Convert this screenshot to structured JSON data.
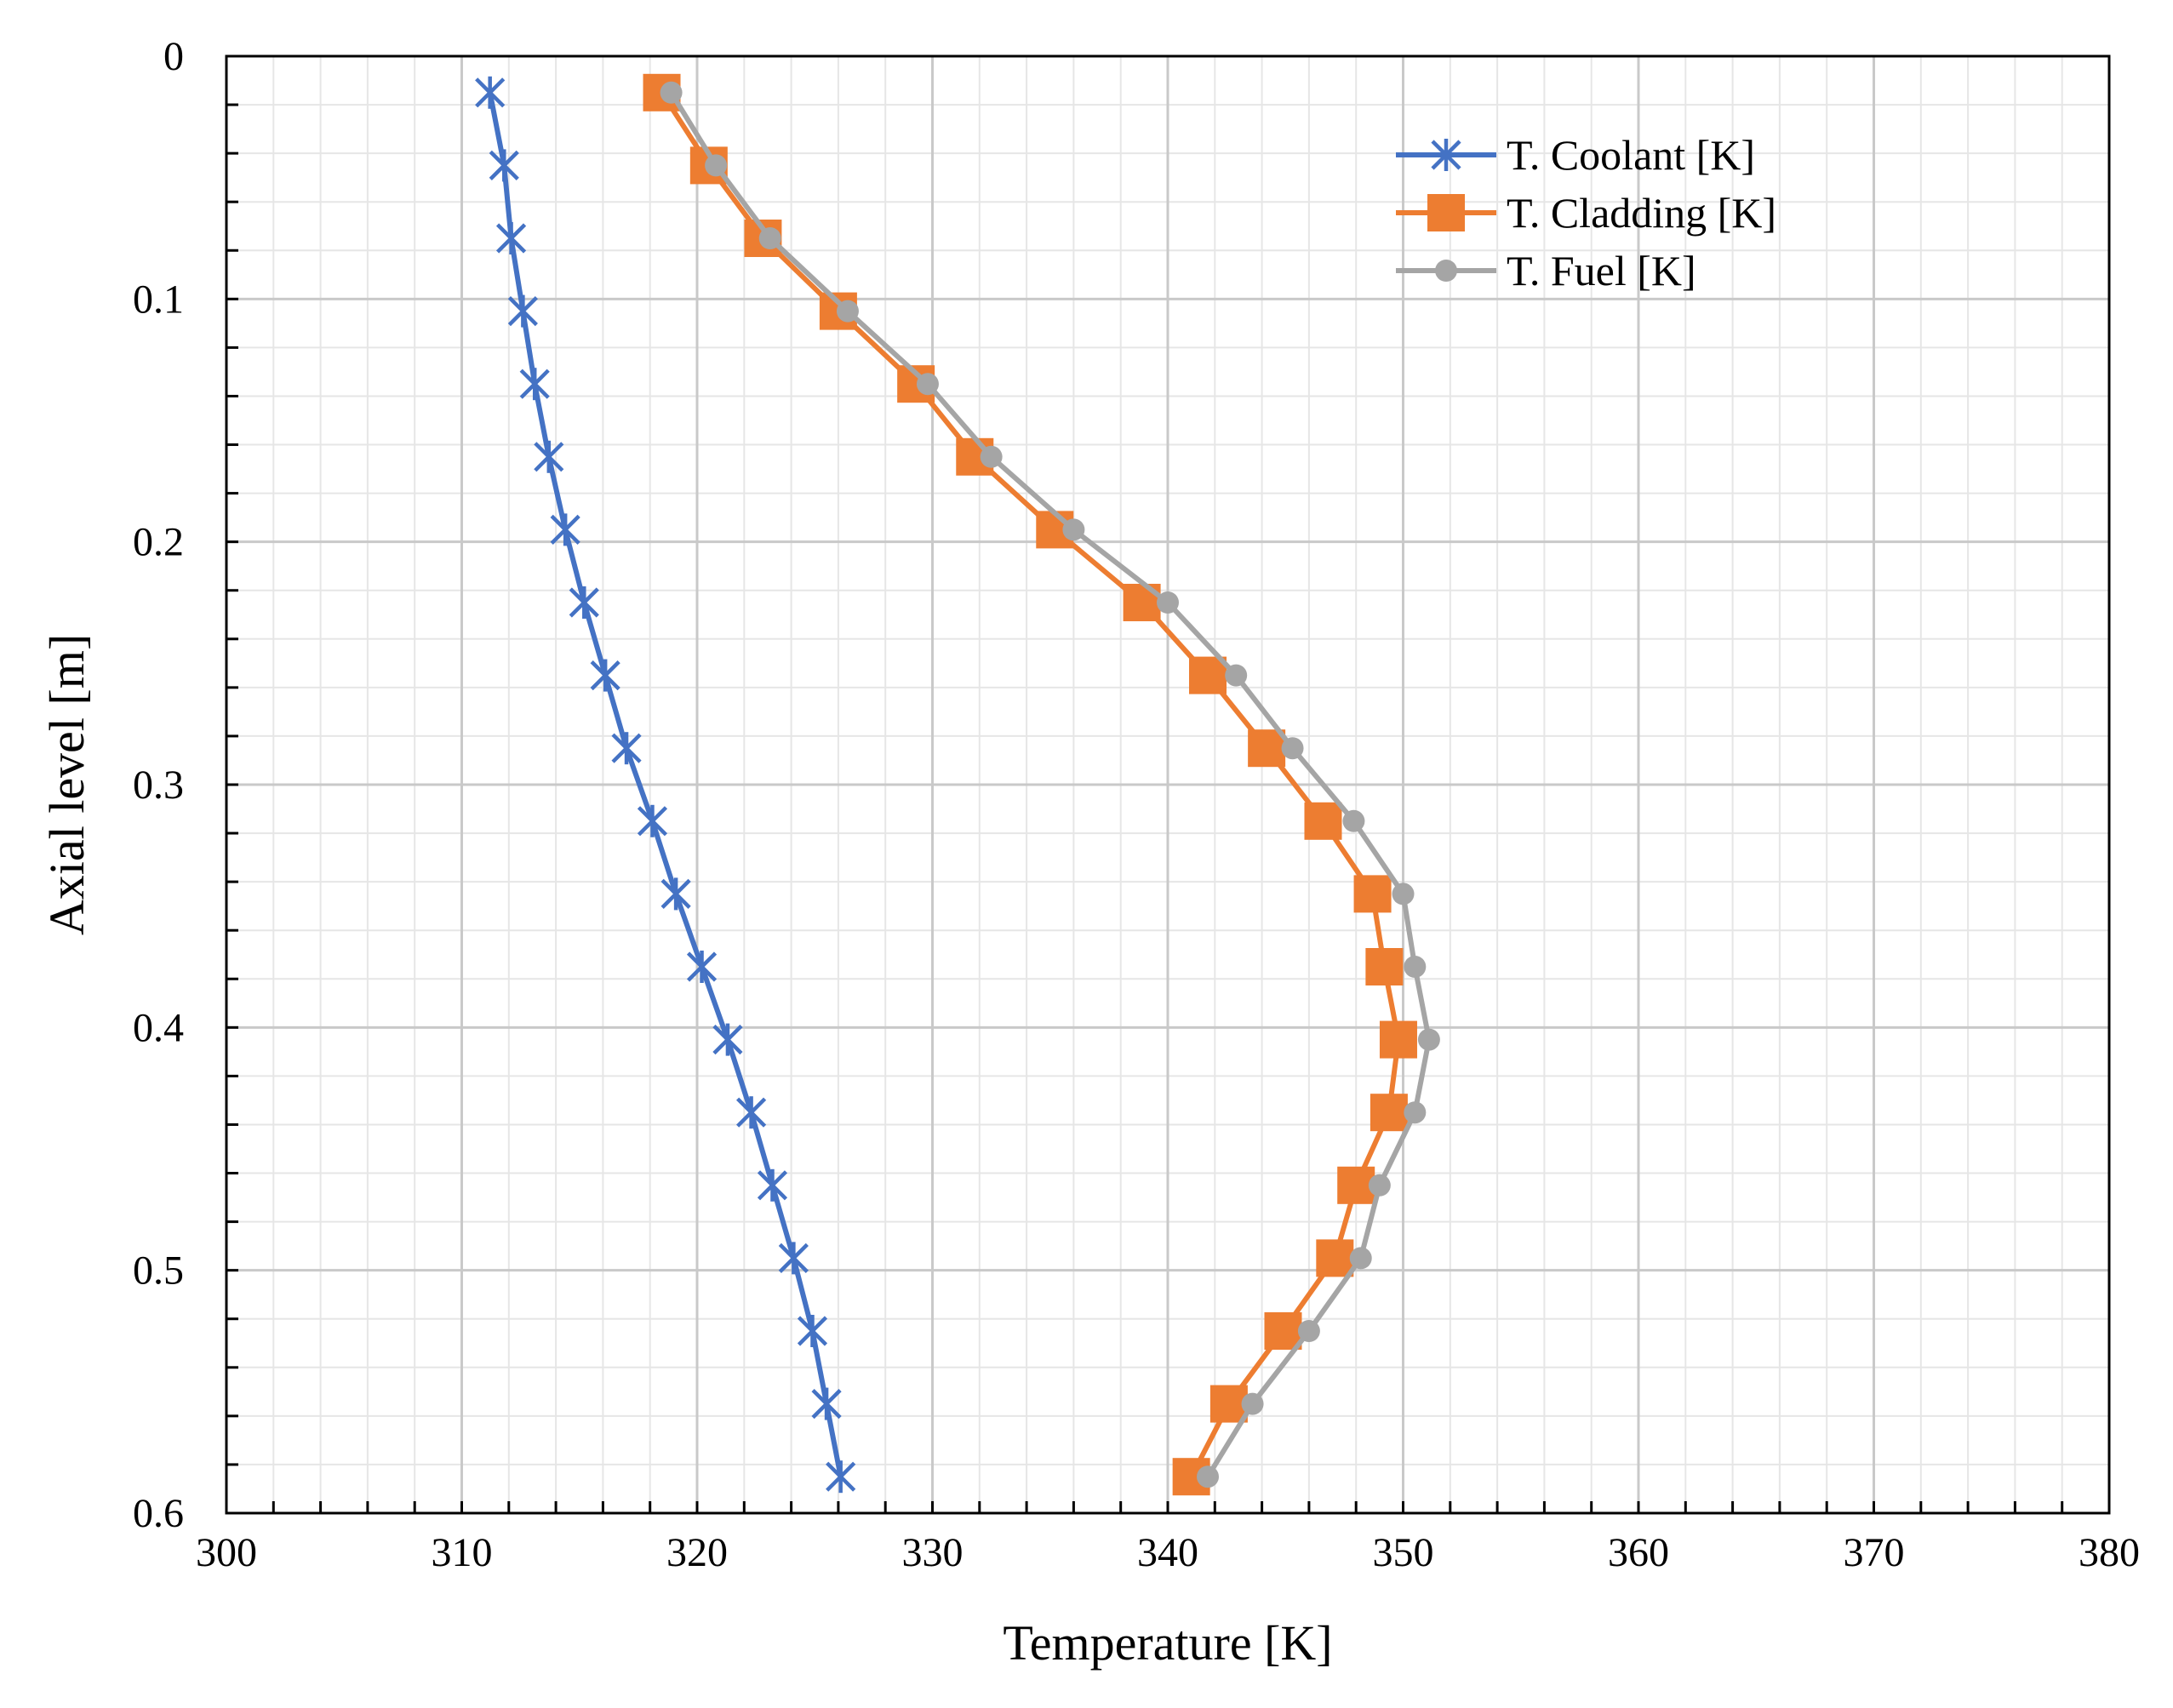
{
  "chart_data": {
    "type": "line",
    "title": "",
    "xlabel": "Temperature  [K]",
    "ylabel": "Axial level  [m]",
    "xlim": [
      300,
      380
    ],
    "ylim": [
      0,
      0.6
    ],
    "y_inverted": true,
    "x_ticks": [
      300,
      310,
      320,
      330,
      340,
      350,
      360,
      370,
      380
    ],
    "x_tick_labels": [
      "300",
      "310",
      "320",
      "330",
      "340",
      "350",
      "360",
      "370",
      "380"
    ],
    "y_ticks": [
      0,
      0.1,
      0.2,
      0.3,
      0.4,
      0.5,
      0.6
    ],
    "y_tick_labels": [
      "0",
      "0.1",
      "0.2",
      "0.3",
      "0.4",
      "0.5",
      "0.6"
    ],
    "grid": true,
    "legend_position": "top-right",
    "y": [
      0.015,
      0.045,
      0.075,
      0.105,
      0.135,
      0.165,
      0.195,
      0.225,
      0.255,
      0.285,
      0.315,
      0.345,
      0.375,
      0.405,
      0.435,
      0.465,
      0.495,
      0.525,
      0.555,
      0.585
    ],
    "series": [
      {
        "name": "T. Coolant [K]",
        "color": "#4472C4",
        "marker": "asterisk",
        "values": [
          311.2,
          311.8,
          312.1,
          312.6,
          313.1,
          313.7,
          314.4,
          315.2,
          316.1,
          317.0,
          318.1,
          319.1,
          320.2,
          321.3,
          322.3,
          323.2,
          324.1,
          324.9,
          325.5,
          326.1
        ]
      },
      {
        "name": "T. Cladding [K]",
        "color": "#ED7D31",
        "marker": "square",
        "values": [
          318.5,
          320.5,
          322.8,
          326.0,
          329.3,
          331.8,
          335.2,
          338.9,
          341.7,
          344.2,
          346.6,
          348.7,
          349.2,
          349.8,
          349.4,
          348.0,
          347.1,
          344.9,
          342.6,
          341.0
        ]
      },
      {
        "name": "T. Fuel [K]",
        "color": "#A5A5A5",
        "marker": "circle",
        "values": [
          318.9,
          320.8,
          323.1,
          326.4,
          329.8,
          332.5,
          336.0,
          340.0,
          342.9,
          345.3,
          347.9,
          350.0,
          350.5,
          351.1,
          350.5,
          349.0,
          348.2,
          346.0,
          343.6,
          341.7
        ]
      }
    ]
  }
}
